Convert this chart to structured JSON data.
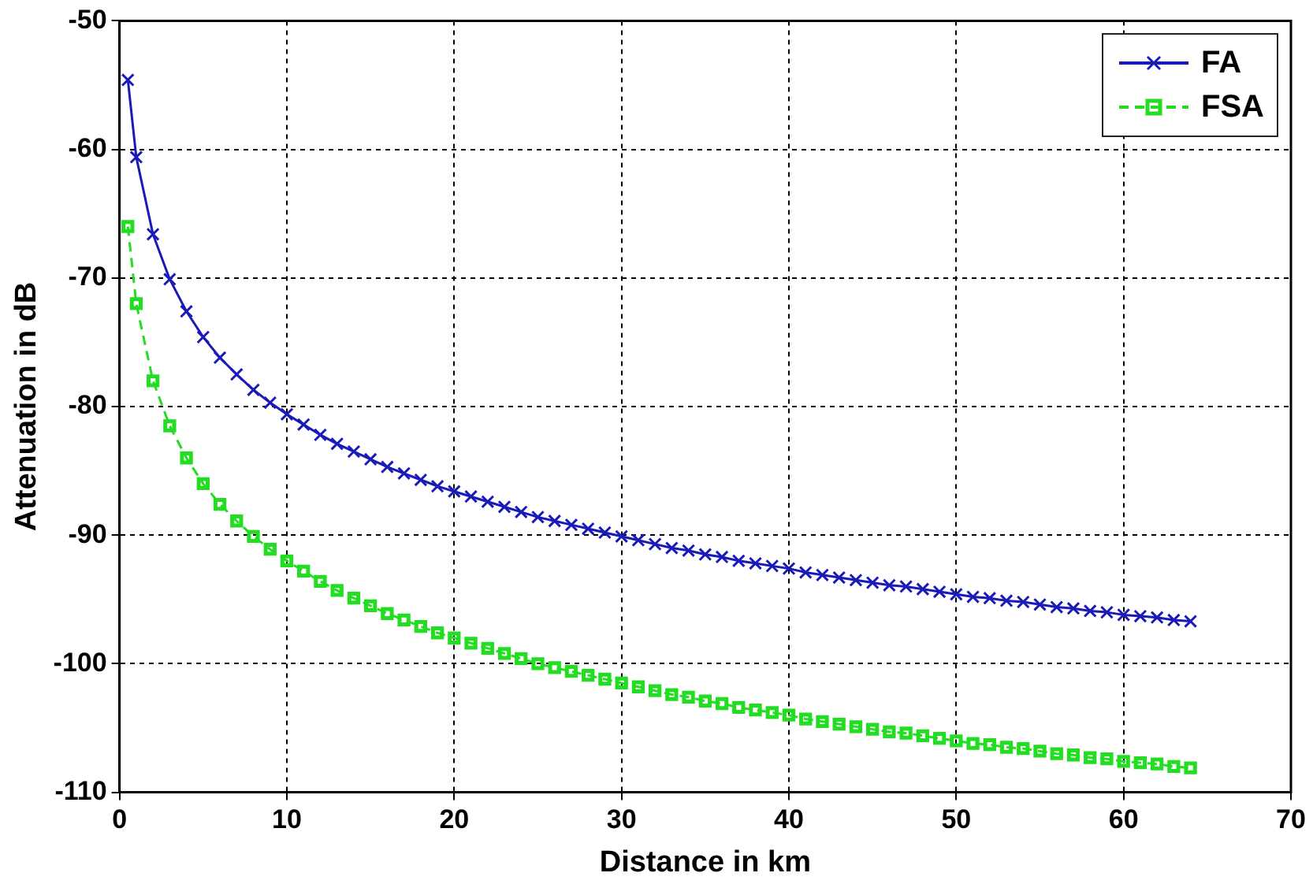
{
  "chart_data": {
    "type": "line",
    "xlabel": "Distance in km",
    "ylabel": "Attenuation in dB",
    "x": [
      0.5,
      1,
      2,
      3,
      4,
      5,
      6,
      7,
      8,
      9,
      10,
      11,
      12,
      13,
      14,
      15,
      16,
      17,
      18,
      19,
      20,
      21,
      22,
      23,
      24,
      25,
      26,
      27,
      28,
      29,
      30,
      31,
      32,
      33,
      34,
      35,
      36,
      37,
      38,
      39,
      40,
      41,
      42,
      43,
      44,
      45,
      46,
      47,
      48,
      49,
      50,
      51,
      52,
      53,
      54,
      55,
      56,
      57,
      58,
      59,
      60,
      61,
      62,
      63,
      64
    ],
    "series": [
      {
        "name": "FA",
        "color": "#1a1ab8",
        "marker": "cross",
        "line_style": "solid",
        "values": [
          -54.6,
          -60.6,
          -66.6,
          -70.1,
          -72.6,
          -74.6,
          -76.2,
          -77.5,
          -78.7,
          -79.7,
          -80.6,
          -81.4,
          -82.2,
          -82.9,
          -83.5,
          -84.1,
          -84.7,
          -85.2,
          -85.7,
          -86.2,
          -86.6,
          -87.0,
          -87.4,
          -87.8,
          -88.2,
          -88.6,
          -88.9,
          -89.2,
          -89.5,
          -89.8,
          -90.1,
          -90.4,
          -90.7,
          -91.0,
          -91.2,
          -91.5,
          -91.7,
          -92.0,
          -92.2,
          -92.4,
          -92.6,
          -92.9,
          -93.1,
          -93.3,
          -93.5,
          -93.7,
          -93.9,
          -94.0,
          -94.2,
          -94.4,
          -94.6,
          -94.8,
          -94.9,
          -95.1,
          -95.2,
          -95.4,
          -95.6,
          -95.7,
          -95.9,
          -96.0,
          -96.2,
          -96.3,
          -96.4,
          -96.6,
          -96.7
        ]
      },
      {
        "name": "FSA",
        "color": "#22dd22",
        "marker": "square",
        "line_style": "dashed",
        "values": [
          -66.0,
          -72.0,
          -78.0,
          -81.5,
          -84.0,
          -86.0,
          -87.6,
          -88.9,
          -90.1,
          -91.1,
          -92.0,
          -92.8,
          -93.6,
          -94.3,
          -94.9,
          -95.5,
          -96.1,
          -96.6,
          -97.1,
          -97.6,
          -98.0,
          -98.4,
          -98.8,
          -99.2,
          -99.6,
          -100.0,
          -100.3,
          -100.6,
          -100.9,
          -101.2,
          -101.5,
          -101.8,
          -102.1,
          -102.4,
          -102.6,
          -102.9,
          -103.1,
          -103.4,
          -103.6,
          -103.8,
          -104.0,
          -104.3,
          -104.5,
          -104.7,
          -104.9,
          -105.1,
          -105.3,
          -105.4,
          -105.6,
          -105.8,
          -106.0,
          -106.2,
          -106.3,
          -106.5,
          -106.6,
          -106.8,
          -107.0,
          -107.1,
          -107.3,
          -107.4,
          -107.6,
          -107.7,
          -107.8,
          -108.0,
          -108.1
        ]
      }
    ],
    "xlim": [
      0,
      70
    ],
    "xticks": [
      0,
      10,
      20,
      30,
      40,
      50,
      60,
      70
    ],
    "ylim": [
      -110,
      -50
    ],
    "yticks": [
      -110,
      -100,
      -90,
      -80,
      -70,
      -60,
      -50
    ],
    "grid": true,
    "legend": "top right"
  }
}
